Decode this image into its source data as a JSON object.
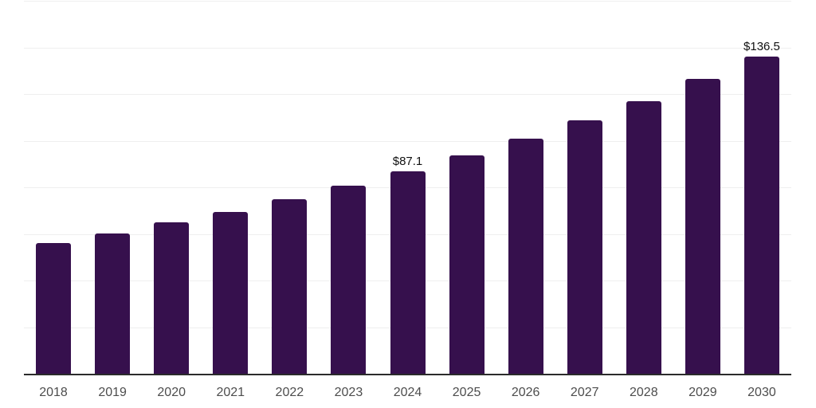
{
  "chart_data": {
    "type": "bar",
    "title": "",
    "xlabel": "",
    "ylabel": "",
    "categories": [
      "2018",
      "2019",
      "2020",
      "2021",
      "2022",
      "2023",
      "2024",
      "2025",
      "2026",
      "2027",
      "2028",
      "2029",
      "2030"
    ],
    "values": [
      56.4,
      60.6,
      65.2,
      69.8,
      75.2,
      81.1,
      87.1,
      94.0,
      101.1,
      109.1,
      117.4,
      126.7,
      136.5
    ],
    "point_labels": [
      "",
      "",
      "",
      "",
      "",
      "",
      "$87.1",
      "",
      "",
      "",
      "",
      "",
      "$136.5"
    ],
    "ylim": [
      0,
      160
    ],
    "grid_step": 20,
    "grid": true,
    "legend_position": "none",
    "colors": {
      "bar_fill": "#36104D",
      "background": "#ffffff",
      "gridline": "#efefef",
      "axis_line": "#2b2b2b",
      "tick_label": "#4d4d4d",
      "data_label": "#111111"
    }
  }
}
